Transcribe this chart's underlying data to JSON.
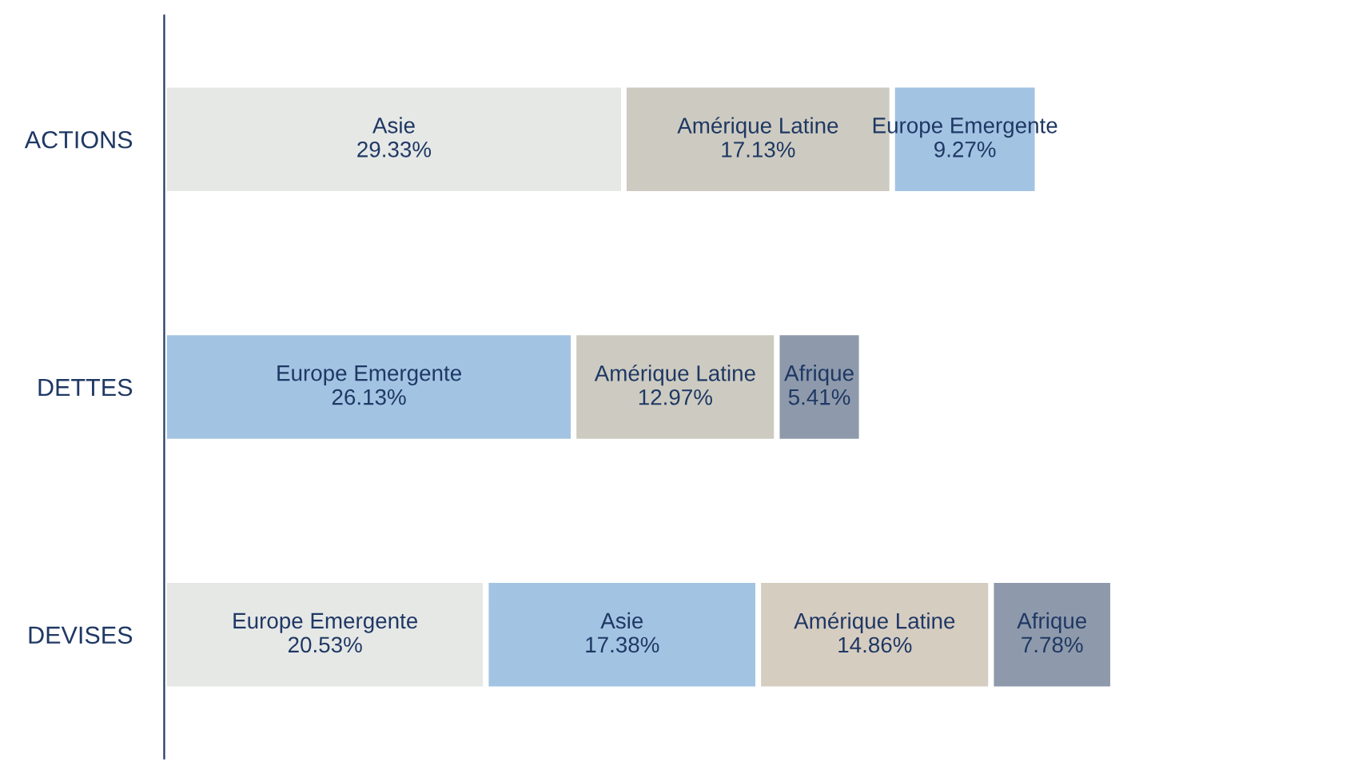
{
  "chart_data": {
    "type": "bar",
    "orientation": "horizontal",
    "stacked": true,
    "legend": false,
    "grid": false,
    "tick_labels": "y",
    "categories": [
      "ACTIONS",
      "DETTES",
      "DEVISES"
    ],
    "series": [
      {
        "colors": [
          "#e6e8e6",
          "#a3c3e3",
          "#e6e8e6"
        ],
        "values": [
          29.33,
          26.13,
          20.53
        ],
        "value_labels": [
          "Asie\n29.33%",
          "Europe Emergente\n26.13%",
          "Europe Emergente\n20.53%"
        ]
      },
      {
        "colors": [
          "#cdcbc1",
          "#cdcbc1",
          "#a3c3e3"
        ],
        "values": [
          17.13,
          12.97,
          17.38
        ],
        "value_labels": [
          "Amérique Latine\n17.13%",
          "Amérique Latine\n12.97%",
          "Asie\n17.38%"
        ]
      },
      {
        "colors": [
          "#a3c3e3",
          "#8e9aab",
          "#d6cdc1"
        ],
        "values": [
          9.27,
          5.41,
          14.86
        ],
        "value_labels": [
          "Europe Emergente\n9.27%",
          "Afrique\n5.41%",
          "Amérique Latine\n14.86%"
        ]
      },
      {
        "colors": [
          null,
          null,
          "#8e9aab"
        ],
        "values": [
          null,
          null,
          7.78
        ],
        "value_labels": [
          null,
          null,
          "Afrique\n7.78%"
        ]
      }
    ]
  }
}
